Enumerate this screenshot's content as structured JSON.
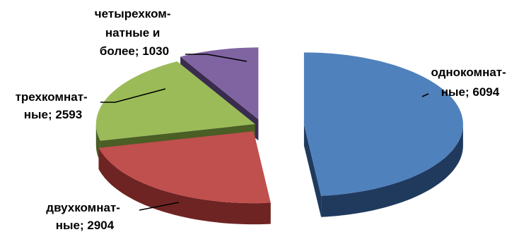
{
  "chart_data": {
    "type": "pie",
    "style": "3d-exploded",
    "categories": [
      "однокомнат-ные",
      "двухкомнат-ные",
      "трехкомнат-ные",
      "четырехком-натные и более"
    ],
    "values": [
      6094,
      2904,
      2593,
      1030
    ],
    "colors": [
      "#4f81bd",
      "#c0504d",
      "#9bbb59",
      "#8064a2"
    ],
    "side_colors": [
      "#203a5e",
      "#6e2422",
      "#4a5e26",
      "#3a2c4e"
    ],
    "labels": [
      {
        "lines": [
          "однокомнат-",
          "ные; 6094"
        ]
      },
      {
        "lines": [
          "двухкомнат-",
          "ные; 2904"
        ]
      },
      {
        "lines": [
          "трехкомнат-",
          "ные; 2593"
        ]
      },
      {
        "lines": [
          "четырехком-",
          "натные и",
          "более; 1030"
        ]
      }
    ],
    "legend": "none"
  }
}
